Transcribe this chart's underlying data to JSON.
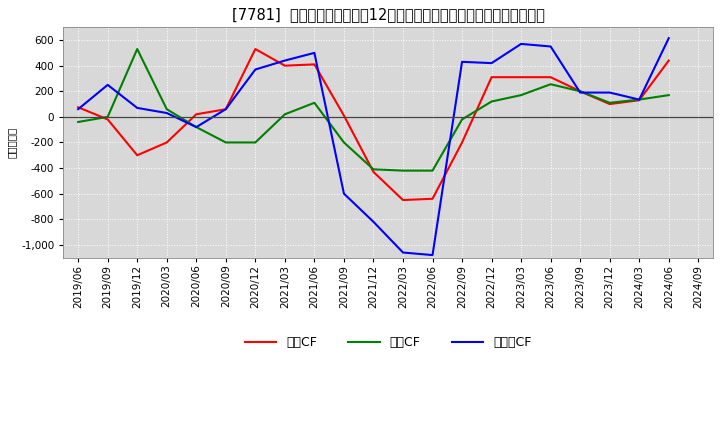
{
  "title": "[7781]  キャッシュフローの12か月移動合計の対前年同期増減額の推移",
  "ylabel": "（百万円）",
  "background_color": "#ffffff",
  "plot_bg_color": "#d8d8d8",
  "ylim": [
    -1100,
    700
  ],
  "yticks": [
    -1000,
    -800,
    -600,
    -400,
    -200,
    0,
    200,
    400,
    600
  ],
  "x_labels": [
    "2019/06",
    "2019/09",
    "2019/12",
    "2020/03",
    "2020/06",
    "2020/09",
    "2020/12",
    "2021/03",
    "2021/06",
    "2021/09",
    "2021/12",
    "2022/03",
    "2022/06",
    "2022/09",
    "2022/12",
    "2023/03",
    "2023/06",
    "2023/09",
    "2023/12",
    "2024/03",
    "2024/06",
    "2024/09"
  ],
  "operating_cf": [
    75,
    -20,
    -300,
    -200,
    20,
    60,
    530,
    400,
    410,
    10,
    -430,
    -650,
    -640,
    -200,
    310,
    310,
    310,
    200,
    100,
    130,
    440,
    null
  ],
  "investing_cf": [
    -40,
    0,
    530,
    60,
    -80,
    -200,
    -200,
    20,
    110,
    -200,
    -410,
    -420,
    -420,
    -20,
    120,
    170,
    255,
    200,
    110,
    135,
    170,
    null
  ],
  "free_cf": [
    60,
    250,
    70,
    30,
    -80,
    60,
    370,
    440,
    500,
    -600,
    -820,
    -1060,
    -1080,
    430,
    420,
    570,
    550,
    190,
    190,
    135,
    615,
    null
  ],
  "series_colors": {
    "operating_cf": "#ff0000",
    "investing_cf": "#008000",
    "free_cf": "#0000ff"
  },
  "series_labels": {
    "operating_cf": "営業CF",
    "investing_cf": "投資CF",
    "free_cf": "フリーCF"
  },
  "title_fontsize": 10.5,
  "axis_fontsize": 7.5,
  "legend_fontsize": 9
}
